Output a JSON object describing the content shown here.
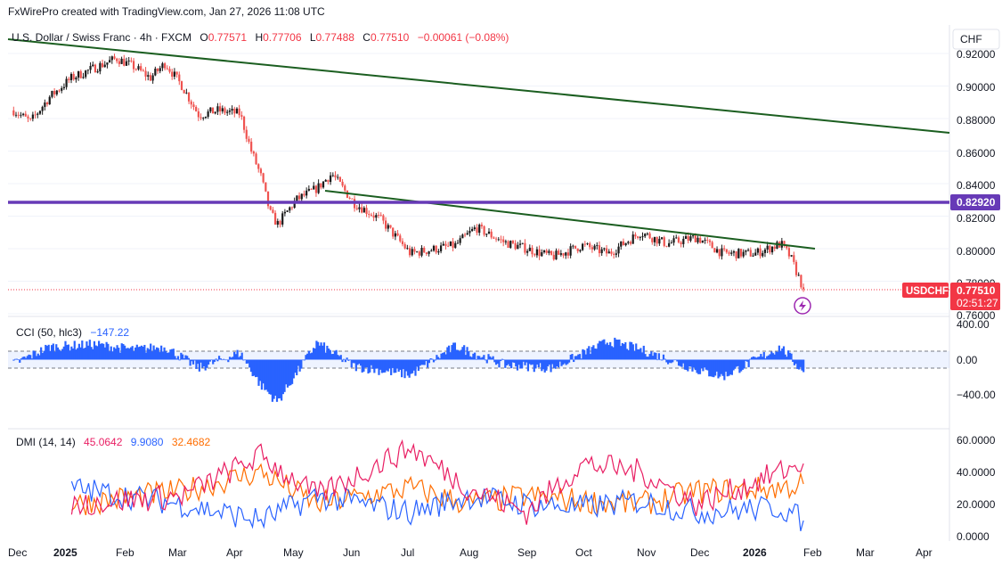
{
  "header": {
    "created_by": "FxWirePro created with TradingView.com, Jan 27, 2026 11:08 UTC"
  },
  "legend": {
    "symbol": "U.S. Dollar / Swiss Franc · 4h · FXCM",
    "o_label": "O",
    "o_value": "0.77571",
    "h_label": "H",
    "h_value": "0.77706",
    "l_label": "L",
    "l_value": "0.77488",
    "c_label": "C",
    "c_value": "0.77510",
    "change": "−0.00061 (−0.08%)"
  },
  "currency_button": "CHF",
  "price_axis": {
    "ticks": [
      "0.92000",
      "0.90000",
      "0.88000",
      "0.86000",
      "0.84000",
      "0.82000",
      "0.80000",
      "0.78000",
      "0.76000"
    ],
    "hline_label": "0.82920",
    "symbol_tag": "USDCHF",
    "last_price": "0.77510",
    "countdown": "02:51:27"
  },
  "cci_panel": {
    "legend_name": "CCI (50, hlc3)",
    "legend_value": "−147.22",
    "ticks": [
      "400.00",
      "0.00",
      "−400.00"
    ]
  },
  "dmi_panel": {
    "legend_name": "DMI (14, 14)",
    "adx": "45.0642",
    "plus_di": "9.9080",
    "minus_di": "32.4682",
    "ticks": [
      "60.0000",
      "40.0000",
      "20.0000",
      "0.0000"
    ]
  },
  "time_axis": [
    "Dec",
    "2025",
    "Feb",
    "Mar",
    "Apr",
    "May",
    "Jun",
    "Jul",
    "Aug",
    "Sep",
    "Oct",
    "Nov",
    "Dec",
    "2026",
    "Feb",
    "Mar",
    "Apr"
  ],
  "colors": {
    "up": "#26a69a",
    "down": "#ef5350",
    "price_line": "#1a1a1a",
    "trendline": "#1b5e20",
    "hline": "#673ab7",
    "cci": "#2962ff",
    "adx": "#e91e63",
    "plus_di": "#2962ff",
    "minus_di": "#ff6d00",
    "last_price_bg": "#f23645"
  },
  "chart_data": [
    {
      "type": "line",
      "title": "U.S. Dollar / Swiss Franc · 4h · FXCM",
      "ylim": [
        0.755,
        0.925
      ],
      "x": [
        "2024-12-01",
        "2024-12-10",
        "2024-12-20",
        "2025-01-01",
        "2025-01-13",
        "2025-01-25",
        "2025-02-03",
        "2025-02-12",
        "2025-02-20",
        "2025-03-01",
        "2025-03-10",
        "2025-03-20",
        "2025-04-01",
        "2025-04-07",
        "2025-04-12",
        "2025-04-17",
        "2025-04-21",
        "2025-05-01",
        "2025-05-12",
        "2025-05-20",
        "2025-06-01",
        "2025-06-15",
        "2025-07-01",
        "2025-07-15",
        "2025-07-25",
        "2025-08-05",
        "2025-08-20",
        "2025-09-01",
        "2025-09-15",
        "2025-10-01",
        "2025-10-15",
        "2025-11-01",
        "2025-11-15",
        "2025-12-01",
        "2025-12-15",
        "2026-01-01",
        "2026-01-15",
        "2026-01-20",
        "2026-01-27"
      ],
      "y": [
        0.885,
        0.878,
        0.893,
        0.905,
        0.911,
        0.917,
        0.912,
        0.905,
        0.914,
        0.9,
        0.882,
        0.885,
        0.883,
        0.86,
        0.845,
        0.822,
        0.815,
        0.83,
        0.837,
        0.846,
        0.828,
        0.818,
        0.797,
        0.8,
        0.802,
        0.813,
        0.804,
        0.8,
        0.795,
        0.802,
        0.797,
        0.81,
        0.803,
        0.807,
        0.797,
        0.797,
        0.803,
        0.795,
        0.7751
      ]
    },
    {
      "type": "line",
      "title": "CCI (50, hlc3)",
      "ylim": [
        -600,
        400
      ],
      "x": [
        "2024-12-01",
        "2024-12-20",
        "2025-01-13",
        "2025-02-03",
        "2025-02-20",
        "2025-03-10",
        "2025-04-01",
        "2025-04-12",
        "2025-04-21",
        "2025-05-12",
        "2025-06-01",
        "2025-07-01",
        "2025-07-25",
        "2025-08-20",
        "2025-09-15",
        "2025-10-15",
        "2025-11-01",
        "2025-12-01",
        "2025-12-15",
        "2026-01-15",
        "2026-01-27"
      ],
      "y": [
        -50,
        150,
        180,
        120,
        150,
        -100,
        80,
        -300,
        -500,
        200,
        -80,
        -180,
        160,
        -60,
        -100,
        220,
        120,
        -120,
        -200,
        150,
        -147.22
      ]
    },
    {
      "type": "line",
      "title": "DMI (14, 14)",
      "ylim": [
        0,
        60
      ],
      "series": [
        {
          "name": "ADX",
          "x": [
            "2025-01-01",
            "2025-03-01",
            "2025-04-12",
            "2025-05-12",
            "2025-07-01",
            "2025-08-01",
            "2025-09-01",
            "2025-10-01",
            "2025-11-01",
            "2025-12-01",
            "2026-01-15",
            "2026-01-27"
          ],
          "y": [
            20,
            25,
            50,
            25,
            55,
            30,
            15,
            45,
            40,
            20,
            40,
            45.0642
          ]
        },
        {
          "name": "+DI",
          "x": [
            "2025-01-01",
            "2025-03-01",
            "2025-04-12",
            "2025-05-12",
            "2025-07-01",
            "2025-08-01",
            "2025-09-01",
            "2025-10-01",
            "2025-11-01",
            "2025-12-01",
            "2026-01-15",
            "2026-01-27"
          ],
          "y": [
            30,
            20,
            10,
            25,
            15,
            25,
            20,
            18,
            22,
            15,
            18,
            9.908
          ]
        },
        {
          "name": "−DI",
          "x": [
            "2025-01-01",
            "2025-03-01",
            "2025-04-12",
            "2025-05-12",
            "2025-07-01",
            "2025-08-01",
            "2025-09-01",
            "2025-10-01",
            "2025-11-01",
            "2025-12-01",
            "2026-01-15",
            "2026-01-27"
          ],
          "y": [
            20,
            28,
            40,
            20,
            30,
            20,
            25,
            22,
            20,
            28,
            30,
            32.4682
          ]
        }
      ]
    }
  ]
}
